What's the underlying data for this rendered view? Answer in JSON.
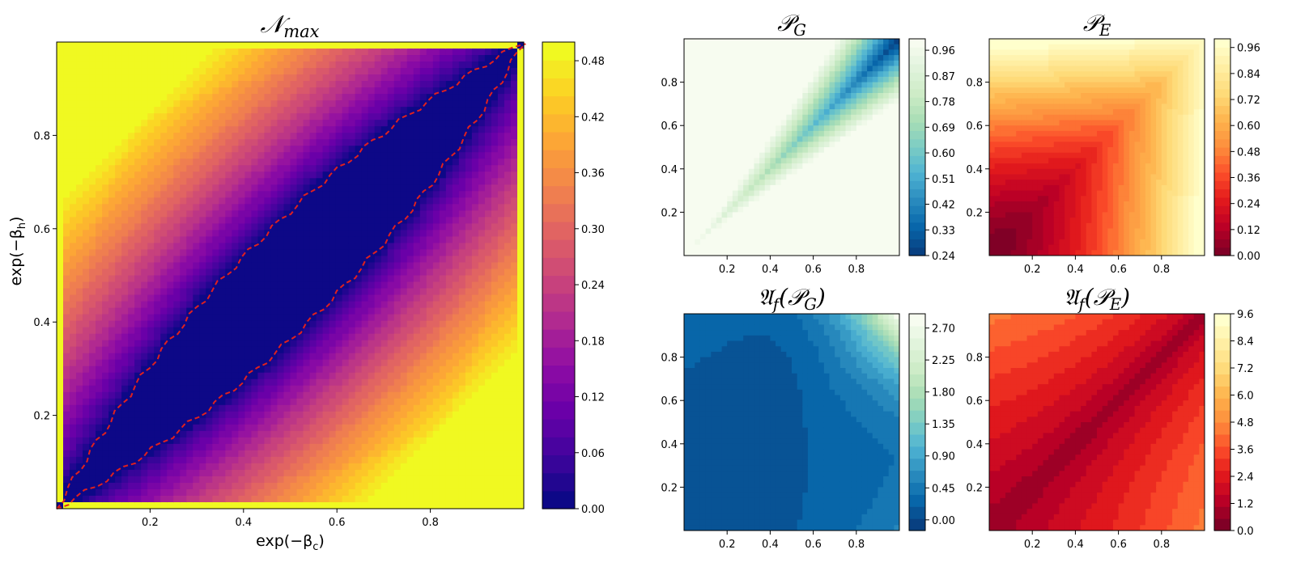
{
  "chart_data": [
    {
      "type": "heatmap",
      "id": "nmax",
      "title": "𝒩",
      "title_sub": "max",
      "xlabel": "exp(−β",
      "xlabel_sub": "c",
      "xlabel_end": ")",
      "ylabel": "exp(−β",
      "ylabel_sub": "h",
      "ylabel_end": ")",
      "x_range": [
        0,
        1
      ],
      "y_range": [
        0,
        1
      ],
      "x_ticks": [
        0.2,
        0.4,
        0.6,
        0.8
      ],
      "y_ticks": [
        0.2,
        0.4,
        0.6,
        0.8
      ],
      "x_tick_labels": [
        "0.2",
        "0.4",
        "0.6",
        "0.8"
      ],
      "y_tick_labels": [
        "0.2",
        "0.4",
        "0.6",
        "0.8"
      ],
      "colormap": "plasma",
      "colorbar_range": [
        0,
        0.5
      ],
      "colorbar_ticks": [
        0.0,
        0.06,
        0.12,
        0.18,
        0.24,
        0.3,
        0.36,
        0.42,
        0.48
      ],
      "colorbar_tick_labels": [
        "0.00",
        "0.06",
        "0.12",
        "0.18",
        "0.24",
        "0.30",
        "0.36",
        "0.42",
        "0.48"
      ],
      "boundary_line_color": "#e0201e",
      "boundary_line_style": "dashed"
    },
    {
      "type": "heatmap",
      "id": "pg",
      "title": "𝒫",
      "title_sub": "G",
      "x_range": [
        0,
        1
      ],
      "y_range": [
        0,
        1
      ],
      "x_ticks": [
        0.2,
        0.4,
        0.6,
        0.8
      ],
      "y_ticks": [
        0.2,
        0.4,
        0.6,
        0.8
      ],
      "x_tick_labels": [
        "0.2",
        "0.4",
        "0.6",
        "0.8"
      ],
      "y_tick_labels": [
        "0.2",
        "0.4",
        "0.6",
        "0.8"
      ],
      "colormap": "GnBu_r",
      "colorbar_range": [
        0.24,
        1.0
      ],
      "colorbar_ticks": [
        0.24,
        0.33,
        0.42,
        0.51,
        0.6,
        0.69,
        0.78,
        0.87,
        0.96
      ],
      "colorbar_tick_labels": [
        "0.24",
        "0.33",
        "0.42",
        "0.51",
        "0.60",
        "0.69",
        "0.78",
        "0.87",
        "0.96"
      ]
    },
    {
      "type": "heatmap",
      "id": "pe",
      "title": "𝒫",
      "title_sub": "E",
      "x_range": [
        0,
        1
      ],
      "y_range": [
        0,
        1
      ],
      "x_ticks": [
        0.2,
        0.4,
        0.6,
        0.8
      ],
      "y_ticks": [
        0.2,
        0.4,
        0.6,
        0.8
      ],
      "x_tick_labels": [
        "0.2",
        "0.4",
        "0.6",
        "0.8"
      ],
      "y_tick_labels": [
        "0.2",
        "0.4",
        "0.6",
        "0.8"
      ],
      "colormap": "YlOrRd_r",
      "colorbar_range": [
        0,
        1.0
      ],
      "colorbar_ticks": [
        0.0,
        0.12,
        0.24,
        0.36,
        0.48,
        0.6,
        0.72,
        0.84,
        0.96
      ],
      "colorbar_tick_labels": [
        "0.00",
        "0.12",
        "0.24",
        "0.36",
        "0.48",
        "0.60",
        "0.72",
        "0.84",
        "0.96"
      ]
    },
    {
      "type": "heatmap",
      "id": "afpg",
      "title": "𝔄",
      "title_sub": "f",
      "title_end": "(𝒫",
      "title_end_sub": "G",
      "title_close": ")",
      "x_range": [
        0,
        1
      ],
      "y_range": [
        0,
        1
      ],
      "x_ticks": [
        0.2,
        0.4,
        0.6,
        0.8
      ],
      "y_ticks": [
        0.2,
        0.4,
        0.6,
        0.8
      ],
      "x_tick_labels": [
        "0.2",
        "0.4",
        "0.6",
        "0.8"
      ],
      "y_tick_labels": [
        "0.2",
        "0.4",
        "0.6",
        "0.8"
      ],
      "colormap": "GnBu_r",
      "colorbar_range": [
        -0.15,
        2.9
      ],
      "colorbar_ticks": [
        0.0,
        0.45,
        0.9,
        1.35,
        1.8,
        2.25,
        2.7
      ],
      "colorbar_tick_labels": [
        "0.00",
        "0.45",
        "0.90",
        "1.35",
        "1.80",
        "2.25",
        "2.70"
      ]
    },
    {
      "type": "heatmap",
      "id": "afpe",
      "title": "𝔄",
      "title_sub": "f",
      "title_end": "(𝒫",
      "title_end_sub": "E",
      "title_close": ")",
      "x_range": [
        0,
        1
      ],
      "y_range": [
        0,
        1
      ],
      "x_ticks": [
        0.2,
        0.4,
        0.6,
        0.8
      ],
      "y_ticks": [
        0.2,
        0.4,
        0.6,
        0.8
      ],
      "x_tick_labels": [
        "0.2",
        "0.4",
        "0.6",
        "0.8"
      ],
      "y_tick_labels": [
        "0.2",
        "0.4",
        "0.6",
        "0.8"
      ],
      "colormap": "YlOrRd_r",
      "colorbar_range": [
        0,
        9.6
      ],
      "colorbar_ticks": [
        0.0,
        1.2,
        2.4,
        3.6,
        4.8,
        6.0,
        7.2,
        8.4,
        9.6
      ],
      "colorbar_tick_labels": [
        "0.0",
        "1.2",
        "2.4",
        "3.6",
        "4.8",
        "6.0",
        "7.2",
        "8.4",
        "9.6"
      ]
    }
  ]
}
